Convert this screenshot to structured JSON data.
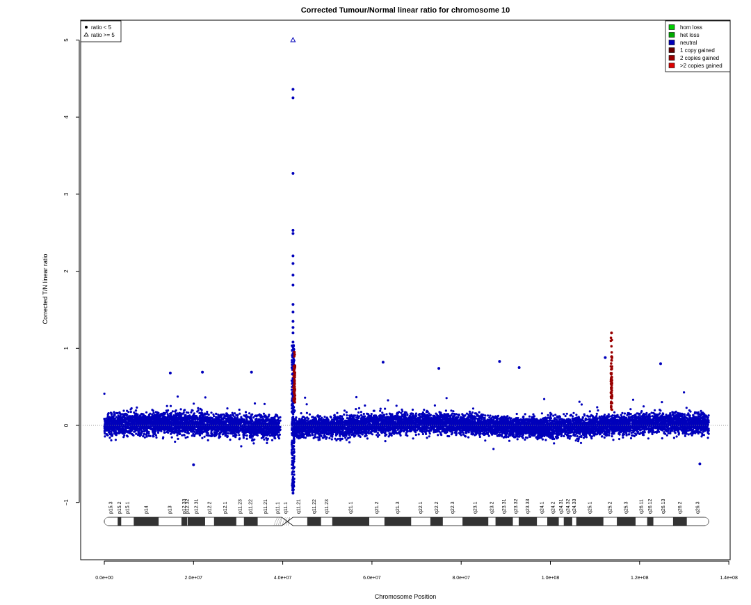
{
  "chart_data": {
    "type": "scatter",
    "title": "Corrected Tumour/Normal linear ratio for chromosome  10",
    "xlabel": "Chromosome Position",
    "ylabel": "Corrected T/N linear ratio",
    "xlim": [
      -5000000,
      140000000
    ],
    "ylim": [
      -1.8,
      5.3
    ],
    "xticks": [
      0,
      20000000,
      40000000,
      60000000,
      80000000,
      100000000,
      120000000,
      140000000
    ],
    "xtick_labels": [
      "0.0e+00",
      "2.0e+07",
      "4.0e+07",
      "6.0e+07",
      "8.0e+07",
      "1.0e+08",
      "1.2e+08",
      "1.4e+08"
    ],
    "yticks": [
      -1,
      0,
      1,
      2,
      3,
      4,
      5
    ],
    "ytick_labels": [
      "−1",
      "0",
      "1",
      "2",
      "3",
      "4",
      "5"
    ],
    "reference_line": 0,
    "legend_left": {
      "placement": "top-left",
      "entries": [
        {
          "symbol": "dot",
          "label": "ratio < 5"
        },
        {
          "symbol": "triangle",
          "label": "ratio >= 5"
        }
      ]
    },
    "legend_right": {
      "placement": "top-right",
      "entries": [
        {
          "label": "hom loss",
          "color": "#00cc00"
        },
        {
          "label": "het loss",
          "color": "#00aa00"
        },
        {
          "label": "neutral",
          "color": "#0000bb"
        },
        {
          "label": "1 copy gained",
          "color": "#660000"
        },
        {
          "label": "2 copies gained",
          "color": "#990000"
        },
        {
          "label": ">2 copies gained",
          "color": "#dd0000"
        }
      ]
    },
    "colors": {
      "neutral": "#0000bb",
      "gain": "#990000"
    },
    "centromere": [
      39800000,
      42300000
    ],
    "chrom_length": 135500000,
    "bulk_series": {
      "name": "neutral",
      "segments": [
        {
          "x": [
            0,
            39500000
          ],
          "spread": 0.22
        },
        {
          "x": [
            42500000,
            135500000
          ],
          "spread": 0.2
        }
      ]
    },
    "outliers": [
      {
        "x": 42300000,
        "y": 4.36
      },
      {
        "x": 42300000,
        "y": 4.25
      },
      {
        "x": 42300000,
        "y": 3.27
      },
      {
        "x": 42300000,
        "y": 2.53
      },
      {
        "x": 42300000,
        "y": 2.49
      },
      {
        "x": 42300000,
        "y": 2.2
      },
      {
        "x": 42300000,
        "y": 2.1
      },
      {
        "x": 42300000,
        "y": 1.95
      },
      {
        "x": 42300000,
        "y": 1.82
      },
      {
        "x": 42300000,
        "y": 1.57
      },
      {
        "x": 42300000,
        "y": 1.47
      },
      {
        "x": 42300000,
        "y": 1.35
      },
      {
        "x": 42300000,
        "y": 1.27
      },
      {
        "x": 42300000,
        "y": 1.2
      },
      {
        "x": 42300000,
        "y": 1.08
      },
      {
        "x": 62500000,
        "y": 0.82
      },
      {
        "x": 88600000,
        "y": 0.83
      },
      {
        "x": 112300000,
        "y": 0.88
      },
      {
        "x": 124700000,
        "y": 0.8
      },
      {
        "x": 14800000,
        "y": 0.68
      },
      {
        "x": 22000000,
        "y": 0.69
      },
      {
        "x": 33000000,
        "y": 0.69
      },
      {
        "x": 75000000,
        "y": 0.74
      },
      {
        "x": 93000000,
        "y": 0.75
      },
      {
        "x": 42300000,
        "y": -0.88
      },
      {
        "x": 42300000,
        "y": -0.79
      },
      {
        "x": 20000000,
        "y": -0.51
      },
      {
        "x": 133500000,
        "y": -0.5
      }
    ],
    "high_outlier": {
      "x": 42300000,
      "y": 5.0,
      "marker": "triangle"
    },
    "gain_series": [
      {
        "x": 42600000,
        "ymin": 0.3,
        "ymax": 0.95
      },
      {
        "x": 113700000,
        "ymin": 0.2,
        "ymax": 1.2
      }
    ],
    "ideogram": {
      "bands": [
        {
          "name": "p15.3",
          "start": 0,
          "end": 3000000,
          "stain": "white"
        },
        {
          "name": "p15.2",
          "start": 3000000,
          "end": 3800000,
          "stain": "dark"
        },
        {
          "name": "p15.1",
          "start": 3800000,
          "end": 6600000,
          "stain": "white"
        },
        {
          "name": "p14",
          "start": 6600000,
          "end": 12200000,
          "stain": "dark"
        },
        {
          "name": "p13",
          "start": 12200000,
          "end": 17300000,
          "stain": "white"
        },
        {
          "name": "p12.33",
          "start": 17300000,
          "end": 18600000,
          "stain": "dark"
        },
        {
          "name": "p12.32",
          "start": 18600000,
          "end": 18700000,
          "stain": "white"
        },
        {
          "name": "p12.31",
          "start": 18700000,
          "end": 22600000,
          "stain": "dark"
        },
        {
          "name": "p12.2",
          "start": 22600000,
          "end": 24600000,
          "stain": "white"
        },
        {
          "name": "p12.1",
          "start": 24600000,
          "end": 29600000,
          "stain": "dark"
        },
        {
          "name": "p11.23",
          "start": 29600000,
          "end": 31300000,
          "stain": "white"
        },
        {
          "name": "p11.22",
          "start": 31300000,
          "end": 34400000,
          "stain": "dark"
        },
        {
          "name": "p11.21",
          "start": 34400000,
          "end": 38000000,
          "stain": "white"
        },
        {
          "name": "p11.1",
          "start": 38000000,
          "end": 39800000,
          "stain": "stalk"
        },
        {
          "name": "q11.1",
          "start": 39800000,
          "end": 41600000,
          "stain": "stalk"
        },
        {
          "name": "q11.21",
          "start": 41600000,
          "end": 45500000,
          "stain": "white"
        },
        {
          "name": "q11.22",
          "start": 45500000,
          "end": 48600000,
          "stain": "dark"
        },
        {
          "name": "q11.23",
          "start": 48600000,
          "end": 51100000,
          "stain": "white"
        },
        {
          "name": "q21.1",
          "start": 51100000,
          "end": 59400000,
          "stain": "dark"
        },
        {
          "name": "q21.2",
          "start": 59400000,
          "end": 62800000,
          "stain": "white"
        },
        {
          "name": "q21.3",
          "start": 62800000,
          "end": 68800000,
          "stain": "dark"
        },
        {
          "name": "q22.1",
          "start": 68800000,
          "end": 73100000,
          "stain": "white"
        },
        {
          "name": "q22.2",
          "start": 73100000,
          "end": 75900000,
          "stain": "dark"
        },
        {
          "name": "q22.3",
          "start": 75900000,
          "end": 80300000,
          "stain": "white"
        },
        {
          "name": "q23.1",
          "start": 80300000,
          "end": 86100000,
          "stain": "dark"
        },
        {
          "name": "q23.2",
          "start": 86100000,
          "end": 87700000,
          "stain": "white"
        },
        {
          "name": "q23.31",
          "start": 87700000,
          "end": 91600000,
          "stain": "dark"
        },
        {
          "name": "q23.32",
          "start": 91600000,
          "end": 92900000,
          "stain": "white"
        },
        {
          "name": "q23.33",
          "start": 92900000,
          "end": 97000000,
          "stain": "dark"
        },
        {
          "name": "q24.1",
          "start": 97000000,
          "end": 99300000,
          "stain": "white"
        },
        {
          "name": "q24.2",
          "start": 99300000,
          "end": 101900000,
          "stain": "dark"
        },
        {
          "name": "q24.31",
          "start": 101900000,
          "end": 103000000,
          "stain": "white"
        },
        {
          "name": "q24.32",
          "start": 103000000,
          "end": 104900000,
          "stain": "dark"
        },
        {
          "name": "q24.33",
          "start": 104900000,
          "end": 105800000,
          "stain": "white"
        },
        {
          "name": "q25.1",
          "start": 105800000,
          "end": 111900000,
          "stain": "dark"
        },
        {
          "name": "q25.2",
          "start": 111900000,
          "end": 114900000,
          "stain": "white"
        },
        {
          "name": "q25.3",
          "start": 114900000,
          "end": 119100000,
          "stain": "dark"
        },
        {
          "name": "q26.11",
          "start": 119100000,
          "end": 121700000,
          "stain": "white"
        },
        {
          "name": "q26.12",
          "start": 121700000,
          "end": 123100000,
          "stain": "dark"
        },
        {
          "name": "q26.13",
          "start": 123100000,
          "end": 127500000,
          "stain": "white"
        },
        {
          "name": "q26.2",
          "start": 127500000,
          "end": 130600000,
          "stain": "dark"
        },
        {
          "name": "q26.3",
          "start": 130600000,
          "end": 135500000,
          "stain": "white"
        }
      ]
    }
  }
}
